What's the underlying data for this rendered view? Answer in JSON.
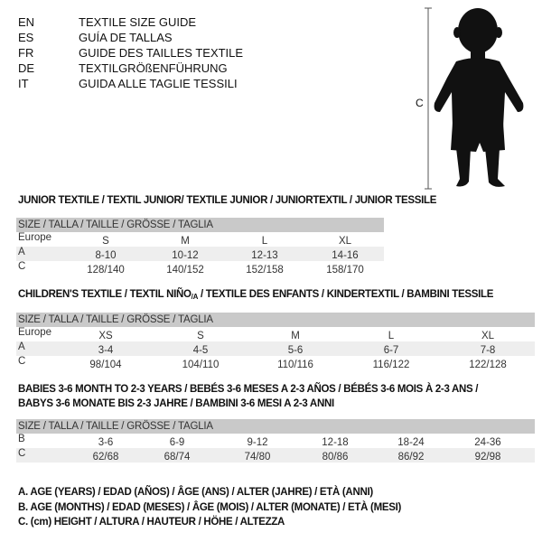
{
  "languages": [
    {
      "code": "EN",
      "title": "TEXTILE SIZE GUIDE"
    },
    {
      "code": "ES",
      "title": "GUÍA DE TALLAS"
    },
    {
      "code": "FR",
      "title": "GUIDE DES TAILLES TEXTILE"
    },
    {
      "code": "DE",
      "title": "TEXTILGRÖßENFÜHRUNG"
    },
    {
      "code": "IT",
      "title": "GUIDA ALLE TAGLIE TESSILI"
    }
  ],
  "figure": {
    "icon": "child-silhouette",
    "measure_label": "C"
  },
  "junior": {
    "heading": "JUNIOR TEXTILE / TEXTIL JUNIOR/ TEXTILE JUNIOR / JUNIORTEXTIL / JUNIOR TESSILE",
    "header": "SIZE / TALLA / TAILLE / GRÖSSE / TAGLIA",
    "rows": [
      {
        "label": "Europe",
        "values": [
          "S",
          "M",
          "L",
          "XL"
        ]
      },
      {
        "label": "A",
        "values": [
          "8-10",
          "10-12",
          "12-13",
          "14-16"
        ]
      },
      {
        "label": "C",
        "values": [
          "128/140",
          "140/152",
          "152/158",
          "158/170"
        ]
      }
    ]
  },
  "children": {
    "heading_pre": "CHILDREN'S TEXTILE / TEXTIL NIÑO",
    "heading_sub": "/A",
    "heading_post": " / TEXTILE DES ENFANTS / KINDERTEXTIL / BAMBINI TESSILE",
    "header": "SIZE / TALLA / TAILLE / GRÖSSE / TAGLIA",
    "rows": [
      {
        "label": "Europe",
        "values": [
          "XS",
          "S",
          "M",
          "L",
          "XL"
        ]
      },
      {
        "label": "A",
        "values": [
          "3-4",
          "4-5",
          "5-6",
          "6-7",
          "7-8"
        ]
      },
      {
        "label": "C",
        "values": [
          "98/104",
          "104/110",
          "110/116",
          "116/122",
          "122/128"
        ]
      }
    ]
  },
  "babies": {
    "heading_line1": "BABIES 3-6 MONTH TO 2-3 YEARS / BEBÉS 3-6 MESES A 2-3 AÑOS / BÉBÉS 3-6 MOIS À 2-3 ANS /",
    "heading_line2": "BABYS 3-6 MONATE BIS 2-3 JAHRE / BAMBINI 3-6 MESI A 2-3 ANNI",
    "header": "SIZE / TALLA / TAILLE / GRÖSSE / TAGLIA",
    "rows": [
      {
        "label": "B",
        "values": [
          "3-6",
          "6-9",
          "9-12",
          "12-18",
          "18-24",
          "24-36"
        ]
      },
      {
        "label": "C",
        "values": [
          "62/68",
          "68/74",
          "74/80",
          "80/86",
          "86/92",
          "92/98"
        ]
      }
    ]
  },
  "legend": [
    "A. AGE (YEARS) / EDAD (AÑOS) / ÂGE (ANS) / ALTER (JAHRE) / ETÀ (ANNI)",
    "B. AGE (MONTHS) / EDAD (MESES) / ÂGE (MOIS) / ALTER (MONATE) / ETÀ (MESI)",
    "C. (cm) HEIGHT / ALTURA / HAUTEUR / HÖHE / ALTEZZA"
  ]
}
